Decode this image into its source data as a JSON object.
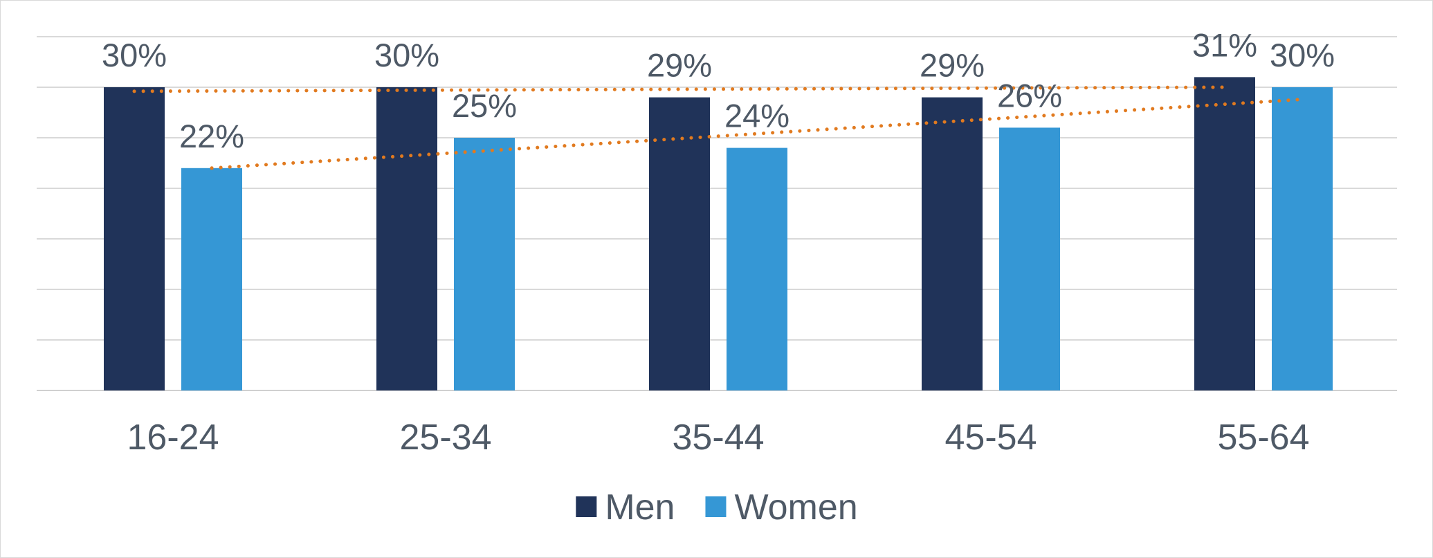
{
  "chart_data": {
    "type": "bar",
    "categories": [
      "16-24",
      "25-34",
      "35-44",
      "45-54",
      "55-64"
    ],
    "series": [
      {
        "name": "Men",
        "values": [
          30,
          30,
          29,
          29,
          31
        ],
        "labels": [
          "30%",
          "30%",
          "29%",
          "29%",
          "31%"
        ],
        "color": "#203359"
      },
      {
        "name": "Women",
        "values": [
          22,
          25,
          24,
          26,
          30
        ],
        "labels": [
          "22%",
          "25%",
          "24%",
          "26%",
          "30%"
        ],
        "color": "#3597d5"
      }
    ],
    "trendlines": [
      {
        "series": "Men",
        "type": "linear",
        "style": "dotted",
        "color": "#e17a1f"
      },
      {
        "series": "Women",
        "type": "linear",
        "style": "dotted",
        "color": "#e17a1f"
      }
    ],
    "ylim": [
      0,
      35
    ],
    "y_gridline_step": 5,
    "y_axis_labels_shown": false,
    "grid": true,
    "legend": {
      "position": "bottom",
      "entries": [
        "Men",
        "Women"
      ]
    }
  }
}
